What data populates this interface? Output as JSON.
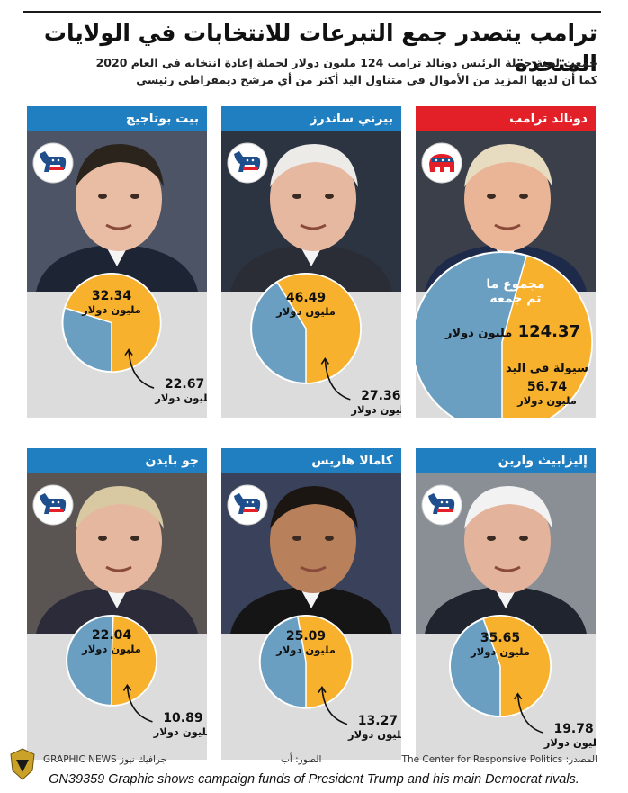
{
  "header": {
    "title": "ترامب يتصدر جمع التبرعات للانتخابات في الولايات المتحدة",
    "subtitle_line1": "جمعت لجنة حملة الرئيس دونالد ترامب 124 مليون دولار لحملة إعادة انتخابه في العام 2020",
    "subtitle_line2": "كما أن لديها المزيد من الأموال في متناول اليد أكثر من أي مرشح ديمقراطي رئيسي"
  },
  "colors": {
    "raised": "#6a9fc2",
    "cash": "#f8b12d",
    "democrat_head": "#1f7fc1",
    "republican_head": "#e32027"
  },
  "chart_data": {
    "type": "pie",
    "unit": "مليون دولار",
    "candidates": [
      {
        "name": "دونالد ترامب",
        "party": "republican",
        "raised": 124.37,
        "cash_on_hand": 56.74,
        "raised_label": "مجموع ما",
        "raised_label2": "تم جمعه",
        "cash_label": "سيولة في اليد"
      },
      {
        "name": "بيرني ساندرز",
        "party": "democrat",
        "raised": 46.49,
        "cash_on_hand": 27.36
      },
      {
        "name": "بيت بوتاجيج",
        "party": "democrat",
        "raised": 32.34,
        "cash_on_hand": 22.67
      },
      {
        "name": "إليزابيث وارين",
        "party": "democrat",
        "raised": 35.65,
        "cash_on_hand": 19.78
      },
      {
        "name": "كامالا هاريس",
        "party": "democrat",
        "raised": 25.09,
        "cash_on_hand": 13.27
      },
      {
        "name": "جو بايدن",
        "party": "democrat",
        "raised": 22.04,
        "cash_on_hand": 10.89
      }
    ]
  },
  "footer": {
    "source": "المصدر: The Center for Responsive Politics",
    "photos": "الصور: أب",
    "brand": "جرافيك نيوز GRAPHIC NEWS",
    "caption": "GN39359 Graphic shows campaign funds of President Trump and his main Democrat rivals."
  }
}
